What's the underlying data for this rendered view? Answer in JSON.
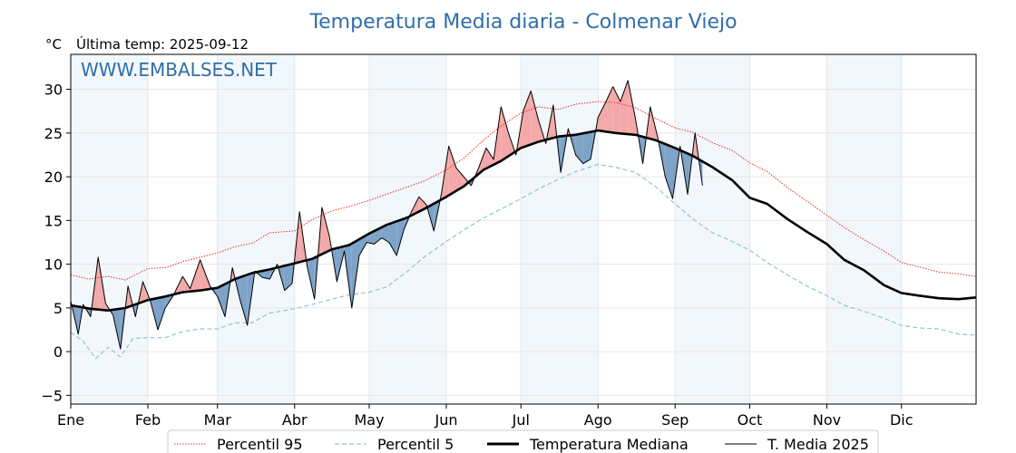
{
  "chart_data": {
    "type": "line",
    "title": "Temperatura Media diaria - Colmenar Viejo",
    "unit_label": "°C",
    "subtitle": "Última temp: 2025-09-12",
    "watermark": "WWW.EMBALSES.NET",
    "ylim": [
      -6,
      34
    ],
    "yticks": [
      -5,
      0,
      5,
      10,
      15,
      20,
      25,
      30
    ],
    "yticklabels": [
      "−5",
      "0",
      "5",
      "10",
      "15",
      "20",
      "25",
      "30"
    ],
    "x_day_range": [
      0,
      364
    ],
    "month_ticks": [
      {
        "label": "Ene",
        "day": 0
      },
      {
        "label": "Feb",
        "day": 31
      },
      {
        "label": "Mar",
        "day": 59
      },
      {
        "label": "Abr",
        "day": 90
      },
      {
        "label": "May",
        "day": 120
      },
      {
        "label": "Jun",
        "day": 151
      },
      {
        "label": "Jul",
        "day": 181
      },
      {
        "label": "Ago",
        "day": 212
      },
      {
        "label": "Sep",
        "day": 243
      },
      {
        "label": "Oct",
        "day": 273
      },
      {
        "label": "Nov",
        "day": 304
      },
      {
        "label": "Dic",
        "day": 334
      }
    ],
    "shaded_month_bands": [
      [
        0,
        31
      ],
      [
        59,
        90
      ],
      [
        120,
        151
      ],
      [
        181,
        212
      ],
      [
        243,
        273
      ],
      [
        304,
        334
      ]
    ],
    "grid": true,
    "legend_position": "bottom",
    "colors": {
      "title": "#2f6ea8",
      "watermark": "#2f6ea8",
      "p95": "#e8302a",
      "p5": "#8ec5d6",
      "median": "#000000",
      "current": "#000000",
      "above_fill": "#f4a9a9",
      "below_fill": "#7ea3c8",
      "band_fill": "#f2f7fc",
      "grid": "#e6e6e6"
    },
    "series": [
      {
        "key": "p95",
        "name": "Percentil 95",
        "style": "dotted",
        "x": [
          0,
          7,
          15,
          22,
          31,
          38,
          45,
          52,
          59,
          66,
          73,
          80,
          90,
          97,
          105,
          112,
          120,
          127,
          135,
          142,
          151,
          158,
          166,
          173,
          181,
          188,
          196,
          203,
          212,
          219,
          227,
          235,
          243,
          250,
          258,
          266,
          273,
          280,
          288,
          296,
          304,
          311,
          319,
          327,
          334,
          341,
          349,
          357,
          364
        ],
        "y": [
          8.8,
          8.3,
          8.6,
          8.2,
          9.5,
          9.6,
          10.3,
          10.8,
          11.3,
          12.0,
          12.4,
          13.6,
          13.8,
          15.1,
          16.1,
          16.6,
          17.3,
          18.0,
          18.8,
          19.5,
          20.8,
          22.1,
          24.2,
          25.8,
          27.3,
          28.0,
          27.7,
          28.3,
          28.6,
          28.5,
          27.9,
          26.7,
          25.6,
          25.1,
          23.9,
          23.0,
          21.6,
          20.6,
          18.8,
          17.2,
          15.6,
          14.2,
          12.8,
          11.5,
          10.2,
          9.7,
          9.1,
          8.9,
          8.6
        ]
      },
      {
        "key": "p5",
        "name": "Percentil 5",
        "style": "dashed",
        "x": [
          0,
          5,
          10,
          15,
          20,
          25,
          31,
          38,
          45,
          52,
          59,
          66,
          73,
          80,
          90,
          97,
          105,
          112,
          120,
          127,
          135,
          142,
          151,
          158,
          166,
          173,
          181,
          188,
          196,
          203,
          212,
          219,
          227,
          235,
          243,
          250,
          258,
          266,
          273,
          280,
          288,
          296,
          304,
          311,
          319,
          327,
          334,
          341,
          349,
          357,
          364
        ],
        "y": [
          2.2,
          1.2,
          -0.8,
          0.5,
          -0.6,
          1.5,
          1.6,
          1.6,
          2.3,
          2.6,
          2.6,
          3.3,
          3.3,
          4.4,
          4.9,
          5.4,
          6.0,
          6.5,
          6.8,
          7.4,
          9.1,
          10.8,
          12.6,
          13.9,
          15.3,
          16.3,
          17.5,
          18.6,
          19.7,
          20.6,
          21.4,
          21.1,
          20.5,
          18.9,
          16.9,
          15.2,
          13.6,
          12.6,
          11.6,
          10.2,
          8.8,
          7.5,
          6.4,
          5.3,
          4.6,
          3.8,
          3.0,
          2.7,
          2.6,
          2.0,
          1.9
        ]
      },
      {
        "key": "median",
        "name": "Temperatura Mediana",
        "style": "solid-thick",
        "x": [
          0,
          8,
          15,
          22,
          31,
          38,
          45,
          52,
          59,
          66,
          73,
          80,
          90,
          97,
          105,
          112,
          120,
          127,
          135,
          142,
          151,
          158,
          166,
          173,
          181,
          188,
          196,
          203,
          212,
          219,
          227,
          235,
          243,
          250,
          258,
          266,
          273,
          280,
          288,
          296,
          304,
          311,
          319,
          327,
          334,
          341,
          349,
          357,
          364
        ],
        "y": [
          5.3,
          4.9,
          4.7,
          5.0,
          5.9,
          6.3,
          6.8,
          7.0,
          7.3,
          8.3,
          9.0,
          9.4,
          10.1,
          10.6,
          11.7,
          12.2,
          13.5,
          14.5,
          15.3,
          16.3,
          17.7,
          18.9,
          20.8,
          21.8,
          23.3,
          24.0,
          24.6,
          24.8,
          25.3,
          25.0,
          24.8,
          24.2,
          23.3,
          22.4,
          21.1,
          19.6,
          17.6,
          16.9,
          15.2,
          13.7,
          12.3,
          10.5,
          9.3,
          7.6,
          6.7,
          6.4,
          6.1,
          6.0,
          6.2
        ]
      },
      {
        "key": "current",
        "name": "T. Media 2025",
        "style": "solid-thin",
        "x": [
          0,
          3,
          5,
          8,
          11,
          14,
          17,
          20,
          23,
          26,
          29,
          32,
          35,
          38,
          41,
          45,
          48,
          52,
          56,
          59,
          62,
          65,
          68,
          71,
          74,
          77,
          80,
          83,
          86,
          89,
          92,
          95,
          98,
          101,
          104,
          107,
          110,
          113,
          116,
          119,
          122,
          125,
          128,
          131,
          134,
          137,
          140,
          143,
          146,
          149,
          152,
          155,
          158,
          161,
          164,
          167,
          170,
          173,
          176,
          179,
          182,
          185,
          188,
          191,
          194,
          197,
          200,
          203,
          206,
          209,
          212,
          215,
          218,
          221,
          224,
          227,
          230,
          233,
          236,
          239,
          242,
          245,
          248,
          251,
          254
        ],
        "y": [
          5.8,
          2.0,
          5.4,
          4.0,
          10.8,
          5.5,
          4.2,
          0.3,
          7.5,
          4.0,
          8.0,
          5.8,
          2.5,
          5.0,
          6.3,
          8.6,
          7.2,
          10.5,
          7.5,
          6.3,
          4.0,
          9.6,
          6.0,
          3.0,
          9.2,
          8.5,
          8.3,
          10.0,
          7.0,
          7.8,
          16.0,
          9.8,
          6.0,
          16.5,
          13.2,
          8.0,
          11.5,
          5.0,
          11.0,
          12.5,
          12.3,
          13.0,
          12.5,
          11.0,
          14.0,
          16.0,
          17.7,
          16.8,
          13.8,
          18.0,
          23.5,
          21.0,
          20.0,
          19.0,
          21.0,
          23.3,
          22.0,
          28.0,
          25.0,
          22.5,
          27.6,
          29.8,
          26.5,
          23.8,
          28.2,
          20.5,
          25.5,
          22.5,
          21.5,
          22.0,
          26.8,
          28.5,
          30.3,
          28.6,
          31.0,
          26.7,
          21.5,
          28.0,
          24.5,
          20.0,
          17.5,
          23.5,
          18.0,
          25.0,
          19.0
        ]
      }
    ]
  }
}
